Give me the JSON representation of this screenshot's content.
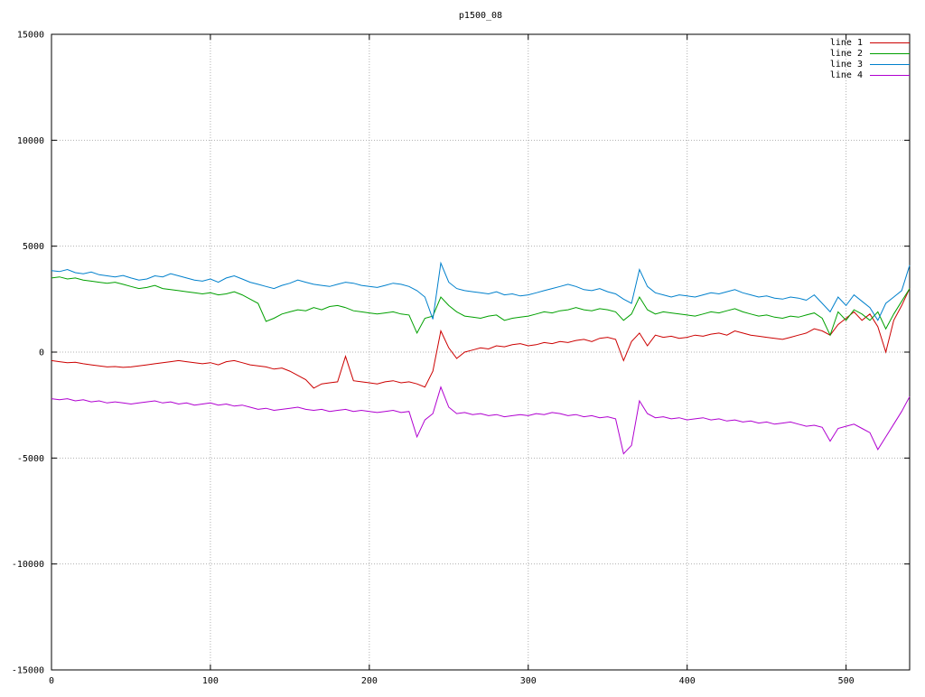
{
  "chart_data": {
    "type": "line",
    "title": "p1500_08",
    "xlabel": "",
    "ylabel": "",
    "xlim": [
      0,
      540
    ],
    "ylim": [
      -15000,
      15000
    ],
    "x_ticks": [
      0,
      100,
      200,
      300,
      400,
      500
    ],
    "y_ticks": [
      -15000,
      -10000,
      -5000,
      0,
      5000,
      10000,
      15000
    ],
    "grid": true,
    "grid_style": "dotted",
    "legend_position": "top-right",
    "x_start": 0,
    "x_step": 5,
    "series": [
      {
        "name": "line 1",
        "color": "#cc0000",
        "values": [
          -400,
          -450,
          -500,
          -480,
          -550,
          -600,
          -650,
          -700,
          -680,
          -720,
          -700,
          -650,
          -600,
          -550,
          -500,
          -450,
          -400,
          -450,
          -500,
          -550,
          -500,
          -600,
          -450,
          -400,
          -500,
          -600,
          -650,
          -700,
          -800,
          -750,
          -900,
          -1100,
          -1300,
          -1700,
          -1500,
          -1450,
          -1400,
          -200,
          -1350,
          -1400,
          -1450,
          -1500,
          -1400,
          -1350,
          -1450,
          -1400,
          -1500,
          -1650,
          -900,
          1000,
          200,
          -300,
          0,
          100,
          200,
          150,
          300,
          250,
          350,
          400,
          300,
          350,
          450,
          400,
          500,
          450,
          550,
          600,
          500,
          650,
          700,
          600,
          -400,
          500,
          900,
          300,
          800,
          700,
          750,
          650,
          700,
          800,
          750,
          850,
          900,
          800,
          1000,
          900,
          800,
          750,
          700,
          650,
          600,
          700,
          800,
          900,
          1100,
          1000,
          800,
          1300,
          1600,
          1900,
          1500,
          1800,
          1200,
          0,
          1500,
          2200,
          3000
        ]
      },
      {
        "name": "line 2",
        "color": "#00a000",
        "values": [
          3500,
          3550,
          3450,
          3500,
          3400,
          3350,
          3300,
          3250,
          3300,
          3200,
          3100,
          3000,
          3050,
          3150,
          3000,
          2950,
          2900,
          2850,
          2800,
          2750,
          2800,
          2700,
          2750,
          2850,
          2700,
          2500,
          2300,
          1450,
          1600,
          1800,
          1900,
          2000,
          1950,
          2100,
          2000,
          2150,
          2200,
          2100,
          1950,
          1900,
          1850,
          1800,
          1850,
          1900,
          1800,
          1750,
          900,
          1600,
          1700,
          2600,
          2200,
          1900,
          1700,
          1650,
          1600,
          1700,
          1750,
          1500,
          1600,
          1650,
          1700,
          1800,
          1900,
          1850,
          1950,
          2000,
          2100,
          2000,
          1950,
          2050,
          2000,
          1900,
          1500,
          1800,
          2600,
          2000,
          1800,
          1900,
          1850,
          1800,
          1750,
          1700,
          1800,
          1900,
          1850,
          1950,
          2050,
          1900,
          1800,
          1700,
          1750,
          1650,
          1600,
          1700,
          1650,
          1750,
          1850,
          1600,
          800,
          1900,
          1500,
          2000,
          1800,
          1500,
          1900,
          1100,
          1800,
          2400,
          3000
        ]
      },
      {
        "name": "line 3",
        "color": "#0080cc",
        "values": [
          3850,
          3800,
          3900,
          3750,
          3700,
          3780,
          3650,
          3600,
          3550,
          3620,
          3500,
          3400,
          3450,
          3600,
          3550,
          3700,
          3600,
          3500,
          3400,
          3350,
          3450,
          3300,
          3500,
          3600,
          3450,
          3300,
          3200,
          3100,
          3000,
          3150,
          3250,
          3400,
          3300,
          3200,
          3150,
          3100,
          3200,
          3300,
          3250,
          3150,
          3100,
          3050,
          3150,
          3250,
          3200,
          3100,
          2900,
          2600,
          1550,
          4200,
          3300,
          3000,
          2900,
          2850,
          2800,
          2750,
          2850,
          2700,
          2750,
          2650,
          2700,
          2800,
          2900,
          3000,
          3100,
          3200,
          3100,
          2950,
          2900,
          3000,
          2850,
          2750,
          2500,
          2300,
          3900,
          3100,
          2800,
          2700,
          2600,
          2700,
          2650,
          2600,
          2700,
          2800,
          2750,
          2850,
          2950,
          2800,
          2700,
          2600,
          2650,
          2550,
          2500,
          2600,
          2550,
          2450,
          2700,
          2300,
          1900,
          2600,
          2200,
          2700,
          2400,
          2100,
          1500,
          2300,
          2600,
          2900,
          4100
        ]
      },
      {
        "name": "line 4",
        "color": "#b000d0",
        "values": [
          -2200,
          -2250,
          -2200,
          -2300,
          -2250,
          -2350,
          -2300,
          -2400,
          -2350,
          -2400,
          -2450,
          -2400,
          -2350,
          -2300,
          -2400,
          -2350,
          -2450,
          -2400,
          -2500,
          -2450,
          -2400,
          -2500,
          -2450,
          -2550,
          -2500,
          -2600,
          -2700,
          -2650,
          -2750,
          -2700,
          -2650,
          -2600,
          -2700,
          -2750,
          -2700,
          -2800,
          -2750,
          -2700,
          -2800,
          -2750,
          -2800,
          -2850,
          -2800,
          -2750,
          -2850,
          -2800,
          -4000,
          -3200,
          -2900,
          -1650,
          -2600,
          -2900,
          -2850,
          -2950,
          -2900,
          -3000,
          -2950,
          -3050,
          -3000,
          -2950,
          -3000,
          -2900,
          -2950,
          -2850,
          -2900,
          -3000,
          -2950,
          -3050,
          -3000,
          -3100,
          -3050,
          -3150,
          -4800,
          -4400,
          -2300,
          -2900,
          -3100,
          -3050,
          -3150,
          -3100,
          -3200,
          -3150,
          -3100,
          -3200,
          -3150,
          -3250,
          -3200,
          -3300,
          -3250,
          -3350,
          -3300,
          -3400,
          -3350,
          -3300,
          -3400,
          -3500,
          -3450,
          -3550,
          -4200,
          -3600,
          -3500,
          -3400,
          -3600,
          -3800,
          -4600,
          -4000,
          -3400,
          -2800,
          -2100
        ]
      }
    ]
  }
}
